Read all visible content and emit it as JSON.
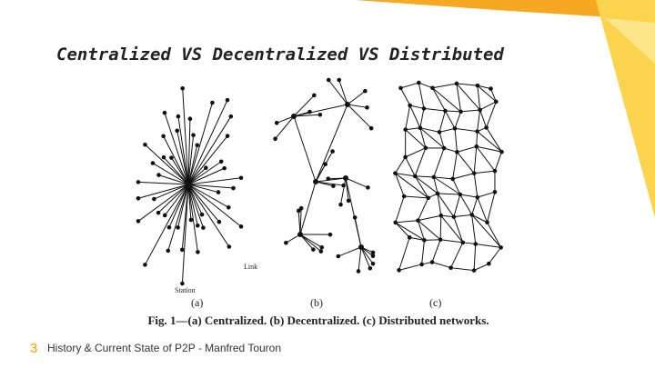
{
  "header": {
    "title": "Centralized VS Decentralized VS Distributed"
  },
  "figure": {
    "labels": {
      "link": "Link",
      "station": "Station",
      "a": "(a)",
      "b": "(b)",
      "c": "(c)"
    },
    "caption": "Fig. 1—(a) Centralized. (b) Decentralized. (c) Distributed networks."
  },
  "footer": {
    "page": "3",
    "text": "History & Current State of P2P - Manfred Touron"
  }
}
